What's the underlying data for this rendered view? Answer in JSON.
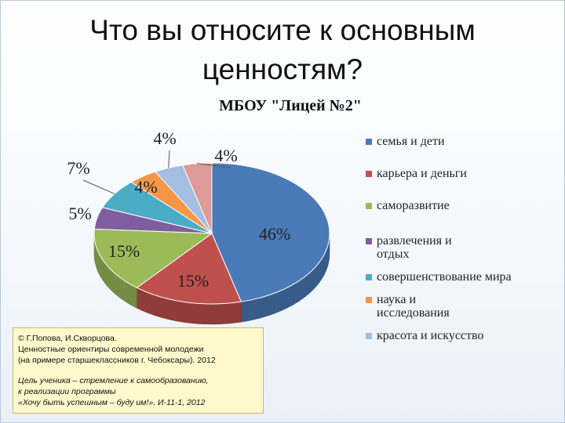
{
  "slide": {
    "title_line1": "Что вы относите к основным",
    "title_line2": "ценностям?"
  },
  "chart_data": {
    "type": "pie",
    "title": "МБОУ \"Лицей №2\"",
    "categories": [
      "семья и дети",
      "карьера и деньги",
      "саморазвитие",
      "развлечения и отдых",
      "совершенствование мира",
      "наука и исследования",
      "красота и искусство",
      ""
    ],
    "values": [
      46,
      15,
      15,
      5,
      7,
      4,
      4,
      4
    ],
    "data_labels": [
      "46%",
      "15%",
      "15%",
      "5%",
      "7%",
      "4%",
      "4%",
      "4%"
    ],
    "colors": [
      "#4a7ab8",
      "#c0504d",
      "#9bbb59",
      "#7f5e9f",
      "#4bacc6",
      "#f79646",
      "#a4bde0",
      "#dc9a98"
    ],
    "legend_position": "right",
    "legend": [
      "семья и дети",
      "карьера и деньги",
      "саморазвитие",
      "развлечения и отдых",
      "совершенствование мира",
      "наука и исследования",
      "красота и искусство"
    ]
  },
  "citation": {
    "line1": "© Г.Попова, И.Скворцова.",
    "line2": "Ценностные ориентиры современной молодежи",
    "line3": "(на примере старшеклассников г. Чебоксары). 2012",
    "line4": "Цель ученика – стремление к самообразованию,",
    "line5": "к реализации программы",
    "line6": "«Хочу быть успешным – буду им!». И-11-1, 2012"
  }
}
